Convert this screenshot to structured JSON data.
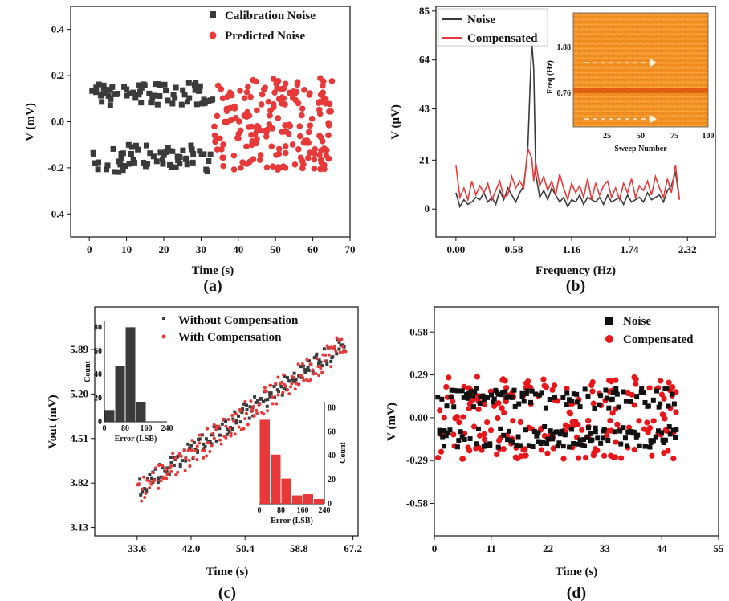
{
  "colors": {
    "dark": "#3a3a3a",
    "red": "#e8393a",
    "black": "#111111",
    "heat": "#f08a1e"
  },
  "chart_data": [
    {
      "panel": "(a)",
      "type": "scatter",
      "xlabel": "Time (s)",
      "ylabel": "V (mV)",
      "xlim": [
        -5,
        70
      ],
      "ylim": [
        -0.5,
        0.5
      ],
      "xticks": [
        "0",
        "10",
        "20",
        "30",
        "40",
        "50",
        "60",
        "70"
      ],
      "yticks": [
        "-0.4",
        "-0.2",
        "0.0",
        "0.2",
        "0.4"
      ],
      "legend": {
        "position": "top-right",
        "entries": [
          "Calibration Noise",
          "Predicted Noise"
        ]
      },
      "series": [
        {
          "name": "Calibration Noise",
          "marker": "square",
          "x_range": [
            0.5,
            33
          ],
          "y_bands": [
            [
              0.07,
              0.17
            ],
            [
              -0.22,
              -0.1
            ]
          ],
          "count": 130
        },
        {
          "name": "Predicted Noise",
          "marker": "circle",
          "x_range": [
            33.5,
            65.5
          ],
          "y_range": [
            -0.21,
            0.19
          ],
          "count": 190
        }
      ]
    },
    {
      "panel": "(b)",
      "type": "line",
      "xlabel": "Frequency (Hz)",
      "ylabel": "V (μV)",
      "xlim": [
        -0.2,
        2.6
      ],
      "ylim": [
        -12,
        87
      ],
      "xticks": [
        "0.00",
        "0.58",
        "1.16",
        "1.74",
        "2.32"
      ],
      "yticks": [
        "0",
        "21",
        "43",
        "64",
        "85"
      ],
      "legend": {
        "position": "top-left",
        "entries": [
          "Noise",
          "Compensated"
        ]
      },
      "series": [
        {
          "name": "Noise",
          "x": [
            0.0,
            0.04,
            0.08,
            0.12,
            0.16,
            0.2,
            0.24,
            0.28,
            0.32,
            0.36,
            0.4,
            0.44,
            0.48,
            0.52,
            0.56,
            0.6,
            0.64,
            0.68,
            0.72,
            0.76,
            0.78,
            0.8,
            0.84,
            0.88,
            0.92,
            0.96,
            1.0,
            1.04,
            1.08,
            1.12,
            1.16,
            1.2,
            1.24,
            1.28,
            1.32,
            1.36,
            1.4,
            1.44,
            1.48,
            1.52,
            1.56,
            1.6,
            1.64,
            1.68,
            1.72,
            1.76,
            1.8,
            1.84,
            1.88,
            1.92,
            1.96,
            2.0,
            2.04,
            2.08,
            2.12,
            2.16,
            2.2,
            2.24
          ],
          "values": [
            7,
            1,
            4,
            2,
            3,
            5,
            4,
            7,
            3,
            5,
            2,
            8,
            4,
            9,
            6,
            3,
            7,
            10,
            25,
            72,
            60,
            15,
            5,
            8,
            4,
            9,
            6,
            3,
            5,
            1,
            4,
            3,
            6,
            2,
            5,
            4,
            3,
            5,
            2,
            6,
            3,
            4,
            5,
            2,
            6,
            3,
            4,
            5,
            3,
            7,
            4,
            5,
            6,
            3,
            8,
            10,
            16,
            4
          ]
        },
        {
          "name": "Compensated",
          "x": [
            0.0,
            0.04,
            0.08,
            0.12,
            0.16,
            0.2,
            0.24,
            0.28,
            0.32,
            0.36,
            0.4,
            0.44,
            0.48,
            0.52,
            0.56,
            0.6,
            0.64,
            0.68,
            0.72,
            0.76,
            0.78,
            0.8,
            0.84,
            0.88,
            0.92,
            0.96,
            1.0,
            1.04,
            1.08,
            1.12,
            1.16,
            1.2,
            1.24,
            1.28,
            1.32,
            1.36,
            1.4,
            1.44,
            1.48,
            1.52,
            1.56,
            1.6,
            1.64,
            1.68,
            1.72,
            1.76,
            1.8,
            1.84,
            1.88,
            1.92,
            1.96,
            2.0,
            2.04,
            2.08,
            2.12,
            2.16,
            2.2,
            2.24
          ],
          "values": [
            19,
            5,
            9,
            4,
            12,
            6,
            10,
            7,
            11,
            4,
            8,
            12,
            5,
            6,
            14,
            9,
            12,
            9,
            26,
            22,
            12,
            20,
            10,
            14,
            8,
            12,
            6,
            15,
            9,
            4,
            11,
            7,
            10,
            5,
            13,
            4,
            11,
            6,
            10,
            12,
            5,
            9,
            4,
            11,
            7,
            13,
            5,
            10,
            8,
            12,
            6,
            14,
            9,
            5,
            13,
            7,
            19,
            4
          ]
        }
      ],
      "inset": {
        "type": "heatmap",
        "xlabel": "Sweep Number",
        "ylabel": "Freq (Hz)",
        "xticks": [
          "25",
          "50",
          "75",
          "100"
        ],
        "yticks": [
          "1.88",
          "0.76"
        ]
      }
    },
    {
      "panel": "(c)",
      "type": "scatter",
      "xlabel": "Time (s)",
      "ylabel": "Vout (mV)",
      "xlim": [
        27,
        68
      ],
      "ylim": [
        3.0,
        6.55
      ],
      "xticks": [
        "33.6",
        "42.0",
        "50.4",
        "58.8",
        "67.2"
      ],
      "yticks": [
        "3.13",
        "3.82",
        "4.51",
        "5.20",
        "5.89"
      ],
      "legend": {
        "position": "top-right",
        "entries": [
          "Without Compensation",
          "With Compensation"
        ]
      },
      "series": [
        {
          "name": "Without Compensation",
          "marker": "square",
          "x_range": [
            33.6,
            66
          ],
          "y_range": [
            3.6,
            6.1
          ],
          "count": 160
        },
        {
          "name": "With Compensation",
          "marker": "circle",
          "x_range": [
            33.6,
            66
          ],
          "y_range": [
            3.4,
            6.2
          ],
          "count": 160
        }
      ],
      "insets": [
        {
          "type": "bar",
          "name": "Without Compensation",
          "xlabel": "Error (LSB)",
          "ylabel": "Count",
          "xticks": [
            "0",
            "80",
            "160",
            "240"
          ],
          "yticks": [
            "0",
            "20",
            "40",
            "60",
            "80"
          ],
          "bins": [
            0,
            40,
            80,
            120
          ],
          "values": [
            10,
            47,
            80,
            17
          ]
        },
        {
          "type": "bar",
          "name": "With Compensation",
          "xlabel": "Error (LSB)",
          "ylabel": "Count",
          "xticks": [
            "0",
            "80",
            "160",
            "240"
          ],
          "yticks": [
            "0",
            "20",
            "40",
            "60",
            "80"
          ],
          "bins": [
            0,
            40,
            80,
            120,
            160,
            200
          ],
          "values": [
            70,
            41,
            21,
            7,
            8,
            4
          ]
        }
      ]
    },
    {
      "panel": "(d)",
      "type": "scatter",
      "xlabel": "Time (s)",
      "ylabel": "V (mV)",
      "xlim": [
        0,
        55
      ],
      "ylim": [
        -0.8,
        0.75
      ],
      "xticks": [
        "0",
        "11",
        "22",
        "33",
        "44",
        "55"
      ],
      "yticks": [
        "-0.58",
        "-0.29",
        "0.00",
        "0.29",
        "0.58"
      ],
      "legend": {
        "position": "top-right",
        "entries": [
          "Noise",
          "Compensated"
        ]
      },
      "series": [
        {
          "name": "Noise",
          "marker": "square",
          "x_range": [
            0.5,
            47
          ],
          "y_bands": [
            [
              0.06,
              0.2
            ],
            [
              -0.2,
              -0.06
            ]
          ],
          "count": 200
        },
        {
          "name": "Compensated",
          "marker": "circle",
          "x_range": [
            0.5,
            47
          ],
          "y_range": [
            -0.28,
            0.28
          ],
          "count": 200
        }
      ]
    }
  ],
  "captions": [
    "(a)",
    "(b)",
    "(c)",
    "(d)"
  ]
}
